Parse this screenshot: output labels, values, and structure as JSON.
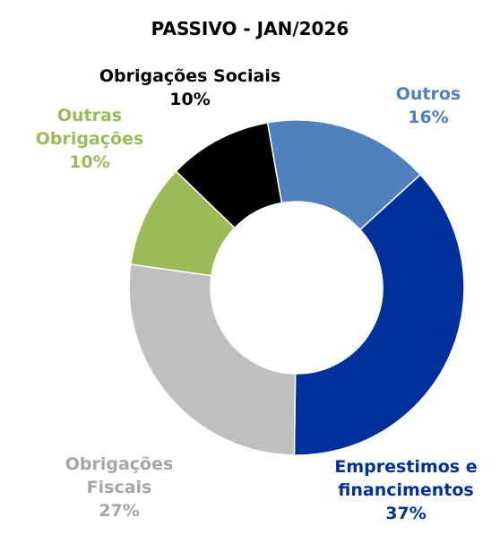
{
  "chart_data": {
    "type": "donut",
    "title": "PASSIVO - JAN/2026",
    "categories": [
      "Outros",
      "Emprestimos e financimentos",
      "Obrigações Fiscais",
      "Outras Obrigações",
      "Obrigações Sociais"
    ],
    "values": [
      16,
      37,
      27,
      10,
      10
    ],
    "value_labels": [
      "16%",
      "37%",
      "27%",
      "10%",
      "10%"
    ],
    "colors": [
      "#4f81bd",
      "#00309a",
      "#bfbfbf",
      "#9bbb59",
      "#000000"
    ],
    "label_colors": [
      "#4f81bd",
      "#00309a",
      "#a6a6a6",
      "#9bbb59",
      "#000000"
    ]
  }
}
